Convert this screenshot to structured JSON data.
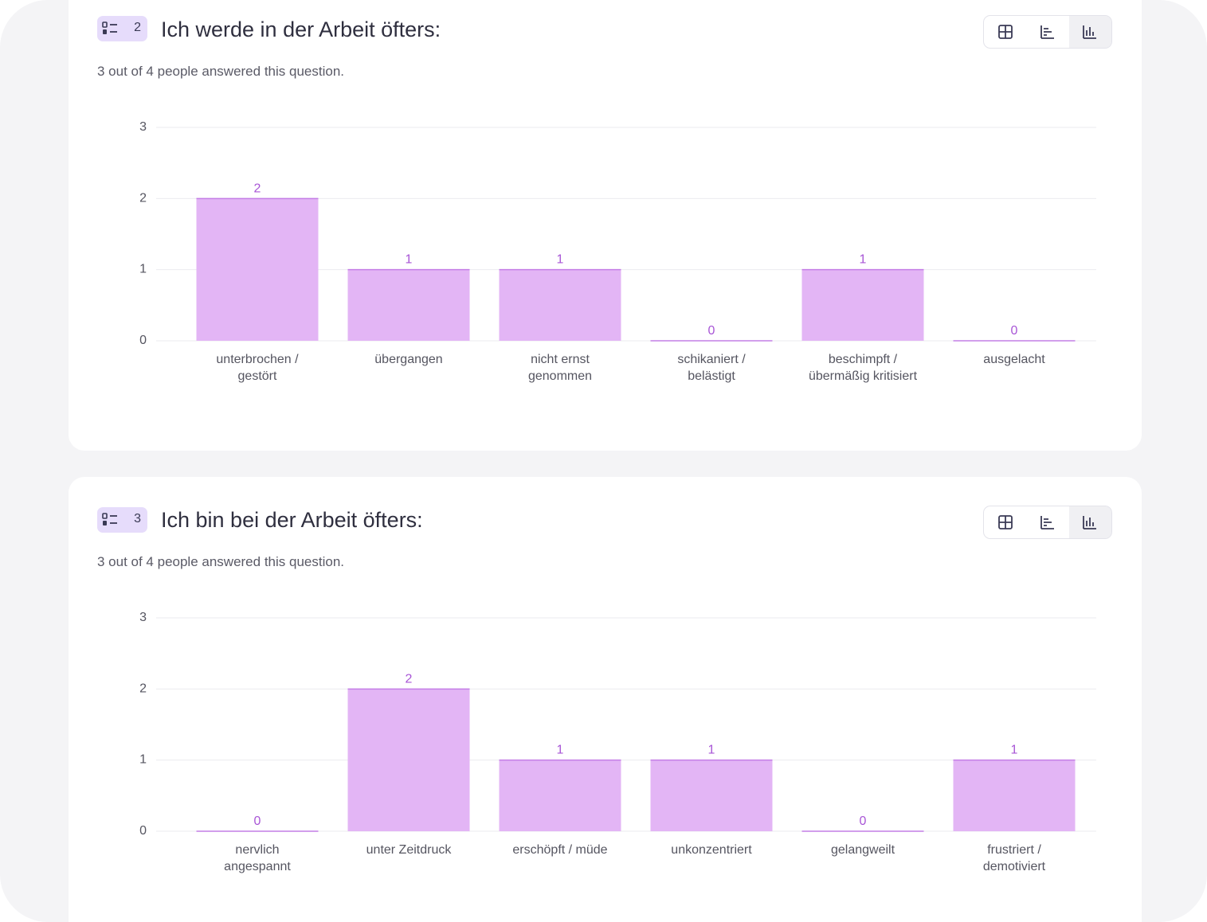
{
  "colors": {
    "bar": "#e3b5f5",
    "bar_edge": "#c47ee6",
    "value_label": "#a855d6",
    "grid": "#ebebef",
    "axis_text": "#555560",
    "badge_bg": "#e6dcfb"
  },
  "questions": [
    {
      "number": "2",
      "title": "Ich werde in der Arbeit öfters:",
      "subtitle": "3 out of 4 people answered this question.",
      "badge_icon": "sorted-list-icon",
      "view_buttons": [
        {
          "icon": "table-grid-icon",
          "active": false
        },
        {
          "icon": "horizontal-bar-chart-icon",
          "active": false
        },
        {
          "icon": "vertical-bar-chart-icon",
          "active": true
        }
      ],
      "chart_data": {
        "type": "bar",
        "categories": [
          [
            "unterbrochen /",
            "gestört"
          ],
          [
            "übergangen"
          ],
          [
            "nicht ernst",
            "genommen"
          ],
          [
            "schikaniert /",
            "belästigt"
          ],
          [
            "beschimpft /",
            "übermäßig kritisiert"
          ],
          [
            "ausgelacht"
          ]
        ],
        "values": [
          2,
          1,
          1,
          0,
          1,
          0
        ],
        "yticks": [
          "0",
          "1",
          "2",
          "3"
        ],
        "ylim": [
          0,
          3
        ],
        "grid": true
      }
    },
    {
      "number": "3",
      "title": "Ich bin bei der Arbeit öfters:",
      "subtitle": "3 out of 4 people answered this question.",
      "badge_icon": "sorted-list-icon",
      "view_buttons": [
        {
          "icon": "table-grid-icon",
          "active": false
        },
        {
          "icon": "horizontal-bar-chart-icon",
          "active": false
        },
        {
          "icon": "vertical-bar-chart-icon",
          "active": true
        }
      ],
      "chart_data": {
        "type": "bar",
        "categories": [
          [
            "nervlich",
            "angespannt"
          ],
          [
            "unter Zeitdruck"
          ],
          [
            "erschöpft / müde"
          ],
          [
            "unkonzentriert"
          ],
          [
            "gelangweilt"
          ],
          [
            "frustriert /",
            "demotiviert"
          ]
        ],
        "values": [
          0,
          2,
          1,
          1,
          0,
          1
        ],
        "yticks": [
          "0",
          "1",
          "2",
          "3"
        ],
        "ylim": [
          0,
          3
        ],
        "grid": true
      }
    }
  ]
}
